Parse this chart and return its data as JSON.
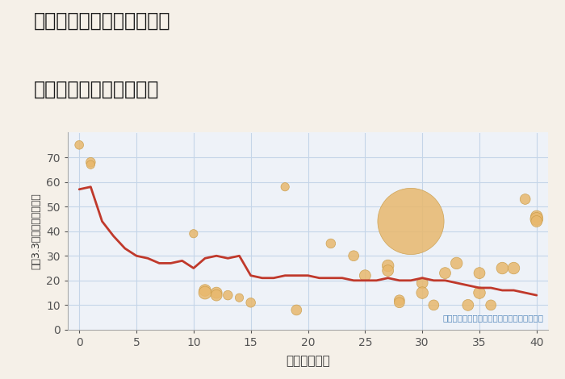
{
  "title_line1": "兵庫県豊岡市但東町小坂の",
  "title_line2": "築年数別中古戸建て価格",
  "xlabel": "築年数（年）",
  "ylabel": "坪（3.3㎡）単価（万円）",
  "annotation": "円の大きさは、取引のあった物件面積を示す",
  "bg_color": "#f5f0e8",
  "plot_bg_color": "#eef2f8",
  "line_color": "#c0392b",
  "scatter_color": "#e8b86d",
  "scatter_edge_color": "#c89a45",
  "xlim": [
    -1,
    41
  ],
  "ylim": [
    0,
    80
  ],
  "xticks": [
    0,
    5,
    10,
    15,
    20,
    25,
    30,
    35,
    40
  ],
  "yticks": [
    0,
    10,
    20,
    30,
    40,
    50,
    60,
    70
  ],
  "line_x": [
    0,
    1,
    2,
    3,
    4,
    5,
    6,
    7,
    8,
    9,
    10,
    11,
    12,
    13,
    14,
    15,
    16,
    17,
    18,
    19,
    20,
    21,
    22,
    23,
    24,
    25,
    26,
    27,
    28,
    29,
    30,
    31,
    32,
    33,
    34,
    35,
    36,
    37,
    38,
    39,
    40
  ],
  "line_y": [
    57,
    58,
    44,
    38,
    33,
    30,
    29,
    27,
    27,
    28,
    25,
    29,
    30,
    29,
    30,
    22,
    21,
    21,
    22,
    22,
    22,
    21,
    21,
    21,
    20,
    20,
    20,
    21,
    20,
    20,
    21,
    20,
    20,
    19,
    18,
    17,
    17,
    16,
    16,
    15,
    14
  ],
  "scatter_x": [
    0,
    1,
    1,
    10,
    11,
    11,
    12,
    12,
    13,
    14,
    15,
    18,
    19,
    22,
    24,
    25,
    27,
    27,
    28,
    28,
    29,
    30,
    30,
    31,
    32,
    33,
    34,
    35,
    35,
    36,
    37,
    38,
    39,
    40,
    40,
    40
  ],
  "scatter_y": [
    75,
    68,
    67,
    39,
    16,
    15,
    15,
    14,
    14,
    13,
    11,
    58,
    8,
    35,
    30,
    22,
    26,
    24,
    12,
    11,
    44,
    19,
    15,
    10,
    23,
    27,
    10,
    23,
    15,
    10,
    25,
    25,
    53,
    46,
    45,
    44
  ],
  "scatter_size": [
    60,
    70,
    55,
    55,
    110,
    130,
    100,
    100,
    70,
    55,
    70,
    55,
    85,
    70,
    85,
    100,
    110,
    100,
    85,
    85,
    3500,
    100,
    110,
    85,
    100,
    110,
    100,
    100,
    110,
    85,
    110,
    110,
    85,
    110,
    130,
    100
  ]
}
